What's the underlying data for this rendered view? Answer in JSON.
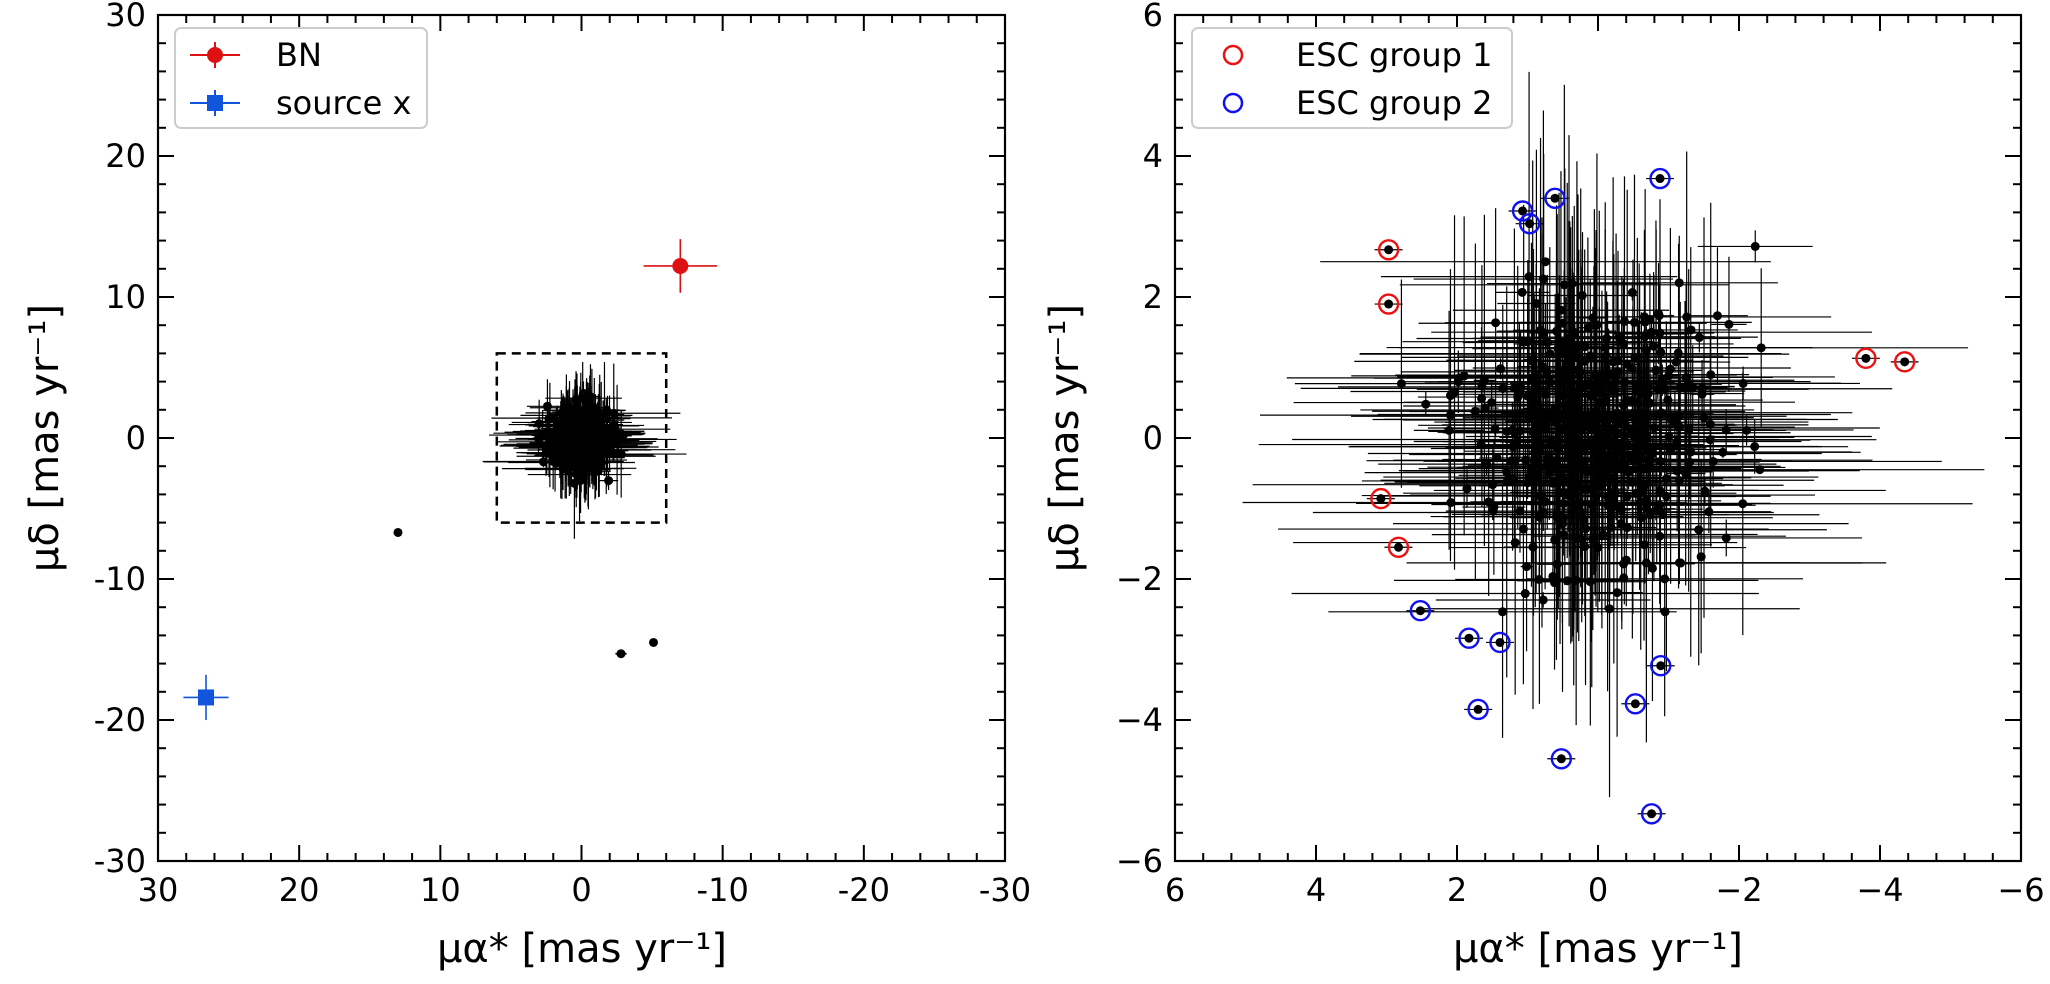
{
  "chart_data": [
    {
      "type": "scatter",
      "xlabel": "μα* [mas yr⁻¹]",
      "ylabel": "μδ [mas yr⁻¹]",
      "xlim": [
        30,
        -30
      ],
      "ylim": [
        -30,
        30
      ],
      "xticks": [
        30,
        20,
        10,
        0,
        -10,
        -20,
        -30
      ],
      "yticks": [
        -30,
        -20,
        -10,
        0,
        10,
        20,
        30
      ],
      "xtick_labels": [
        "30",
        "20",
        "10",
        "0",
        "-10",
        "-20",
        "-30"
      ],
      "ytick_labels": [
        "-30",
        "-20",
        "-10",
        "0",
        "10",
        "20",
        "30"
      ],
      "legend_position": "top-left",
      "legend": [
        {
          "label": "BN",
          "color": "#dd1111",
          "marker": "circle"
        },
        {
          "label": "source x",
          "color": "#1155dd",
          "marker": "square"
        }
      ],
      "highlight_box": {
        "x": [
          -6,
          6
        ],
        "y": [
          -6,
          6
        ],
        "style": "dashed"
      },
      "series": [
        {
          "name": "BN",
          "color": "#dd1111",
          "points": [
            {
              "x": -7.0,
              "y": 12.2,
              "xerr": 2.6,
              "yerr": 1.9
            }
          ]
        },
        {
          "name": "source x",
          "color": "#1155dd",
          "points": [
            {
              "x": 26.6,
              "y": -18.4,
              "xerr": 1.6,
              "yerr": 1.6
            }
          ]
        },
        {
          "name": "outliers",
          "color": "#000000",
          "points": [
            {
              "x": 13.0,
              "y": -6.7,
              "xerr": 0,
              "yerr": 0
            },
            {
              "x": -2.8,
              "y": -15.3,
              "xerr": 0.4,
              "yerr": 0
            },
            {
              "x": -5.1,
              "y": -14.5,
              "xerr": 0,
              "yerr": 0
            }
          ]
        }
      ],
      "cluster": {
        "center": [
          0,
          0
        ],
        "spread": [
          1.1,
          1.05
        ],
        "count": 420,
        "xerr_max": 5,
        "yerr_max": 4,
        "color": "#000000"
      }
    },
    {
      "type": "scatter",
      "xlabel": "μα* [mas yr⁻¹]",
      "ylabel": "μδ [mas yr⁻¹]",
      "xlim": [
        6,
        -6
      ],
      "ylim": [
        -6,
        6
      ],
      "xticks": [
        6,
        4,
        2,
        0,
        -2,
        -4,
        -6
      ],
      "yticks": [
        -6,
        -4,
        -2,
        0,
        2,
        4,
        6
      ],
      "xtick_labels": [
        "6",
        "4",
        "2",
        "0",
        "−2",
        "−4",
        "−6"
      ],
      "ytick_labels": [
        "−6",
        "−4",
        "−2",
        "0",
        "2",
        "4",
        "6"
      ],
      "legend_position": "top-left",
      "legend": [
        {
          "label": "ESC group 1",
          "color": "#ee1111",
          "marker": "open-circle"
        },
        {
          "label": "ESC group 2",
          "color": "#1111ee",
          "marker": "open-circle"
        }
      ],
      "series": [
        {
          "name": "ESC group 1",
          "color": "#ee1111",
          "points": [
            {
              "x": 2.97,
              "y": 2.67
            },
            {
              "x": 2.97,
              "y": 1.9
            },
            {
              "x": 3.08,
              "y": -0.86
            },
            {
              "x": 2.83,
              "y": -1.55
            },
            {
              "x": -3.8,
              "y": 1.13
            },
            {
              "x": -4.35,
              "y": 1.08
            }
          ]
        },
        {
          "name": "ESC group 2",
          "color": "#1111ee",
          "points": [
            {
              "x": 1.07,
              "y": 3.22
            },
            {
              "x": 0.97,
              "y": 3.04
            },
            {
              "x": 0.61,
              "y": 3.4
            },
            {
              "x": -0.88,
              "y": 3.68
            },
            {
              "x": 2.52,
              "y": -2.45
            },
            {
              "x": 1.83,
              "y": -2.84
            },
            {
              "x": 1.39,
              "y": -2.9
            },
            {
              "x": 1.7,
              "y": -3.85
            },
            {
              "x": -0.89,
              "y": -3.23
            },
            {
              "x": -0.53,
              "y": -3.77
            },
            {
              "x": 0.52,
              "y": -4.55
            },
            {
              "x": -0.76,
              "y": -5.33
            }
          ]
        }
      ],
      "cluster": {
        "center": [
          0,
          0
        ],
        "spread": [
          0.85,
          0.95
        ],
        "count": 480,
        "xerr_max": 3.5,
        "yerr_max": 3.0,
        "color": "#000000"
      }
    }
  ]
}
